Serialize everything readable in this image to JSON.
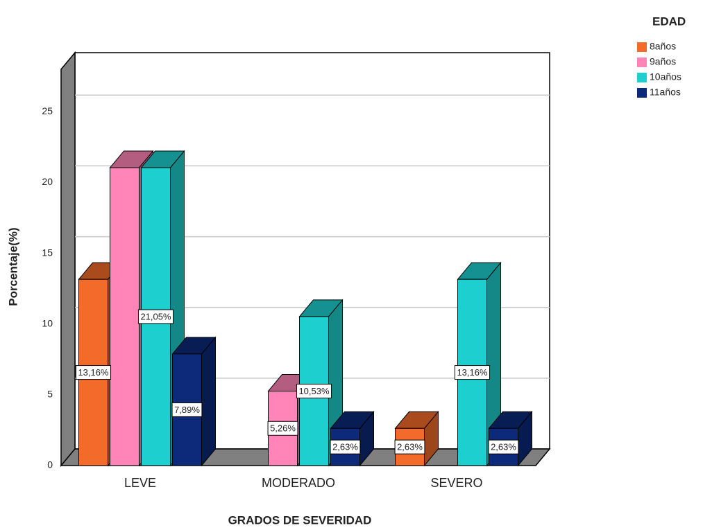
{
  "chart_data": {
    "type": "bar3d",
    "x_label": "GRADOS DE SEVERIDAD",
    "y_label": "Porcentaje(%)",
    "legend_title": "EDAD",
    "legend": "top-right",
    "grid": true,
    "categories": [
      "LEVE",
      "MODERADO",
      "SEVERO"
    ],
    "ylim": [
      0,
      28
    ],
    "yticks": [
      0,
      5,
      10,
      15,
      20,
      25
    ],
    "series": [
      {
        "name": "8años",
        "color": "#f26b2a",
        "values": [
          13.16,
          null,
          2.63
        ],
        "value_labels": [
          "13,16%",
          null,
          "2,63%"
        ]
      },
      {
        "name": "9años",
        "color": "#ff85b8",
        "values": [
          21.05,
          5.26,
          null
        ],
        "value_labels": [
          null,
          "5,26%",
          null
        ]
      },
      {
        "name": "10años",
        "color": "#1ecfcf",
        "values": [
          21.05,
          10.53,
          13.16
        ],
        "value_labels": [
          "21,05%",
          "10,53%",
          "13,16%"
        ]
      },
      {
        "name": "11años",
        "color": "#0d2a7a",
        "values": [
          7.89,
          2.63,
          2.63
        ],
        "value_labels": [
          "7,89%",
          "2,63%",
          "2,63%"
        ]
      }
    ]
  }
}
